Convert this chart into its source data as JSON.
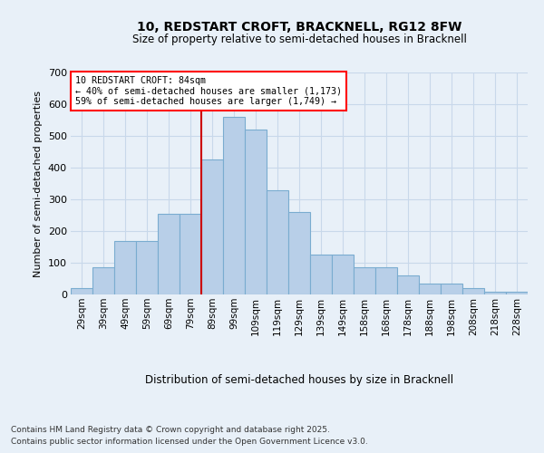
{
  "title_line1": "10, REDSTART CROFT, BRACKNELL, RG12 8FW",
  "title_line2": "Size of property relative to semi-detached houses in Bracknell",
  "xlabel": "Distribution of semi-detached houses by size in Bracknell",
  "ylabel": "Number of semi-detached properties",
  "categories": [
    "29sqm",
    "39sqm",
    "49sqm",
    "59sqm",
    "69sqm",
    "79sqm",
    "89sqm",
    "99sqm",
    "109sqm",
    "119sqm",
    "129sqm",
    "139sqm",
    "149sqm",
    "158sqm",
    "168sqm",
    "178sqm",
    "188sqm",
    "198sqm",
    "208sqm",
    "218sqm",
    "228sqm"
  ],
  "values": [
    20,
    85,
    170,
    170,
    255,
    255,
    425,
    560,
    520,
    330,
    260,
    125,
    125,
    85,
    85,
    60,
    35,
    35,
    20,
    8,
    8
  ],
  "bar_color": "#b8cfe8",
  "bar_edge_color": "#7aacd0",
  "vline_color": "#cc0000",
  "annotation_text": "10 REDSTART CROFT: 84sqm\n← 40% of semi-detached houses are smaller (1,173)\n59% of semi-detached houses are larger (1,749) →",
  "annotation_box_color": "white",
  "annotation_box_edge_color": "red",
  "grid_color": "#c8d8ea",
  "background_color": "#e8f0f8",
  "footnote_line1": "Contains HM Land Registry data © Crown copyright and database right 2025.",
  "footnote_line2": "Contains public sector information licensed under the Open Government Licence v3.0.",
  "ylim": [
    0,
    700
  ],
  "yticks": [
    0,
    100,
    200,
    300,
    400,
    500,
    600,
    700
  ],
  "bin_width": 10,
  "vline_x_index": 6
}
